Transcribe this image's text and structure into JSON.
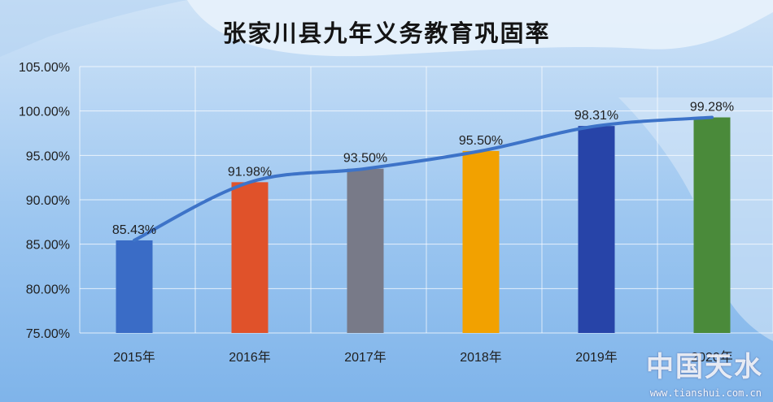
{
  "chart_data": {
    "type": "bar",
    "title": "张家川县九年义务教育巩固率",
    "categories": [
      "2015年",
      "2016年",
      "2017年",
      "2018年",
      "2019年",
      "2020年"
    ],
    "values": [
      85.43,
      91.98,
      93.5,
      95.5,
      98.31,
      99.28
    ],
    "data_labels": [
      "85.43%",
      "91.98%",
      "93.50%",
      "95.50%",
      "98.31%",
      "99.28%"
    ],
    "bar_colors": [
      "#3a6cc6",
      "#e0522a",
      "#787a88",
      "#f2a100",
      "#2744a8",
      "#4a8a3a"
    ],
    "trendline": {
      "type": "line",
      "color": "#3d73c8"
    },
    "ylim": [
      75,
      105
    ],
    "yticks": [
      75,
      80,
      85,
      90,
      95,
      100,
      105
    ],
    "ytick_labels": [
      "75.00%",
      "80.00%",
      "85.00%",
      "90.00%",
      "95.00%",
      "100.00%",
      "105.00%"
    ],
    "grid": true,
    "legend": "none",
    "xlabel": "",
    "ylabel": ""
  },
  "watermark": {
    "text": "中国天水",
    "url": "www.tianshui.com.cn"
  }
}
